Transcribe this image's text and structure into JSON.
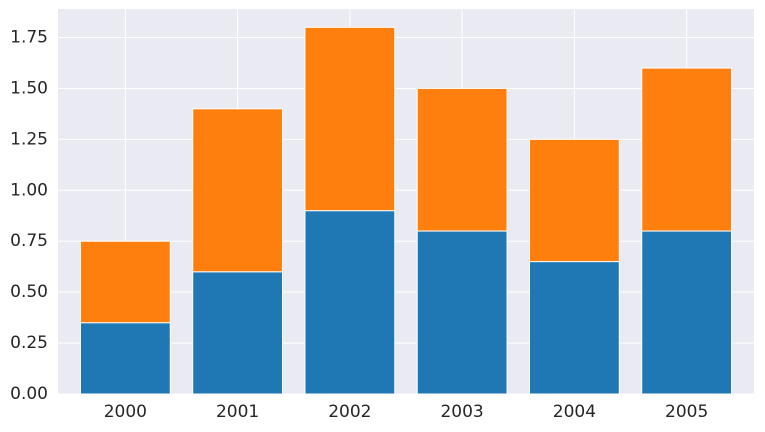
{
  "chart_data": {
    "type": "bar",
    "stacked": true,
    "title": "",
    "xlabel": "",
    "ylabel": "",
    "categories": [
      "2000",
      "2001",
      "2002",
      "2003",
      "2004",
      "2005"
    ],
    "series": [
      {
        "color": "#1f77b4",
        "values": [
          0.35,
          0.6,
          0.9,
          0.8,
          0.65,
          0.8
        ]
      },
      {
        "color": "#ff7f0e",
        "values": [
          0.4,
          0.8,
          0.9,
          0.7,
          0.6,
          0.8
        ]
      }
    ],
    "ylim": [
      0,
      1.89
    ],
    "y_ticks": [
      "0.00",
      "0.25",
      "0.50",
      "0.75",
      "1.00",
      "1.25",
      "1.50",
      "1.75"
    ],
    "grid": true,
    "legend": "none",
    "background_color": "#eaeaf2",
    "grid_color": "#ffffff"
  }
}
